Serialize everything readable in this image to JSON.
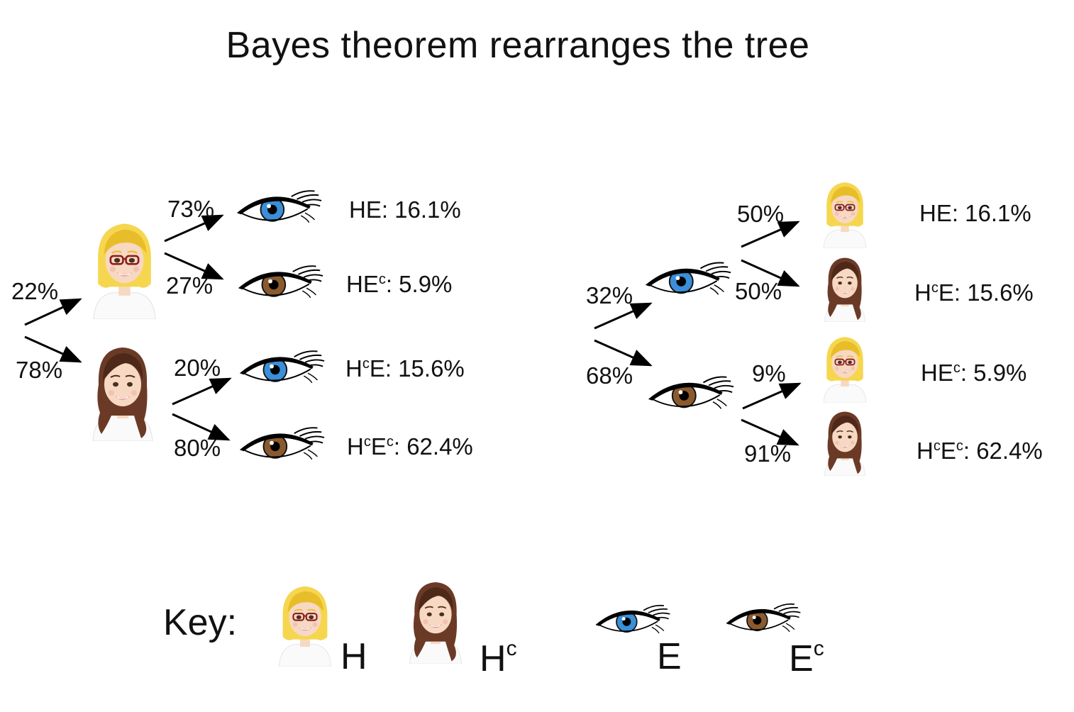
{
  "title": "Bayes theorem rearranges the tree",
  "colors": {
    "blonde_hair": "#f5d64e",
    "brunette_hair": "#6b3a26",
    "blue_iris": "#3a8fd8",
    "brown_iris": "#8a5a2e",
    "skin": "#f7d8c2"
  },
  "icons": {
    "H": "blonde-woman-icon",
    "Hc": "brunette-woman-icon",
    "E": "blue-eye-icon",
    "Ec": "brown-eye-icon"
  },
  "left_tree": {
    "root_labels": [
      "22%",
      "78%"
    ],
    "branches": [
      {
        "first": "H",
        "second": "E",
        "pct": "73%",
        "result": {
          "base": "HE",
          "value": ": 16.1%"
        }
      },
      {
        "first": "H",
        "second": "Ec",
        "pct": "27%",
        "result": {
          "base": "HE",
          "sup": "c",
          "value": ": 5.9%"
        }
      },
      {
        "first": "Hc",
        "second": "E",
        "pct": "20%",
        "result": {
          "base": "H",
          "sup": "c",
          "rest": "E",
          "value": ": 15.6%"
        }
      },
      {
        "first": "Hc",
        "second": "Ec",
        "pct": "80%",
        "result": {
          "base": "H",
          "sup": "c",
          "rest": "E",
          "sup2": "c",
          "value": ": 62.4%"
        }
      }
    ]
  },
  "right_tree": {
    "root_labels": [
      "32%",
      "68%"
    ],
    "branches": [
      {
        "first": "E",
        "second": "H",
        "pct": "50%",
        "result": {
          "base": "HE",
          "value": ": 16.1%"
        }
      },
      {
        "first": "E",
        "second": "Hc",
        "pct": "50%",
        "result": {
          "base": "H",
          "sup": "c",
          "rest": "E",
          "value": ": 15.6%"
        }
      },
      {
        "first": "Ec",
        "second": "H",
        "pct": "9%",
        "result": {
          "base": "HE",
          "sup": "c",
          "value": ": 5.9%"
        }
      },
      {
        "first": "Ec",
        "second": "Hc",
        "pct": "91%",
        "result": {
          "base": "H",
          "sup": "c",
          "rest": "E",
          "sup2": "c",
          "value": ": 62.4%"
        }
      }
    ]
  },
  "key": {
    "title": "Key:",
    "items": [
      {
        "symbol": "H",
        "icon": "blonde-woman-icon"
      },
      {
        "symbol": "H",
        "sup": "c",
        "icon": "brunette-woman-icon"
      },
      {
        "symbol": "E",
        "icon": "blue-eye-icon"
      },
      {
        "symbol": "E",
        "sup": "c",
        "icon": "brown-eye-icon"
      }
    ]
  }
}
